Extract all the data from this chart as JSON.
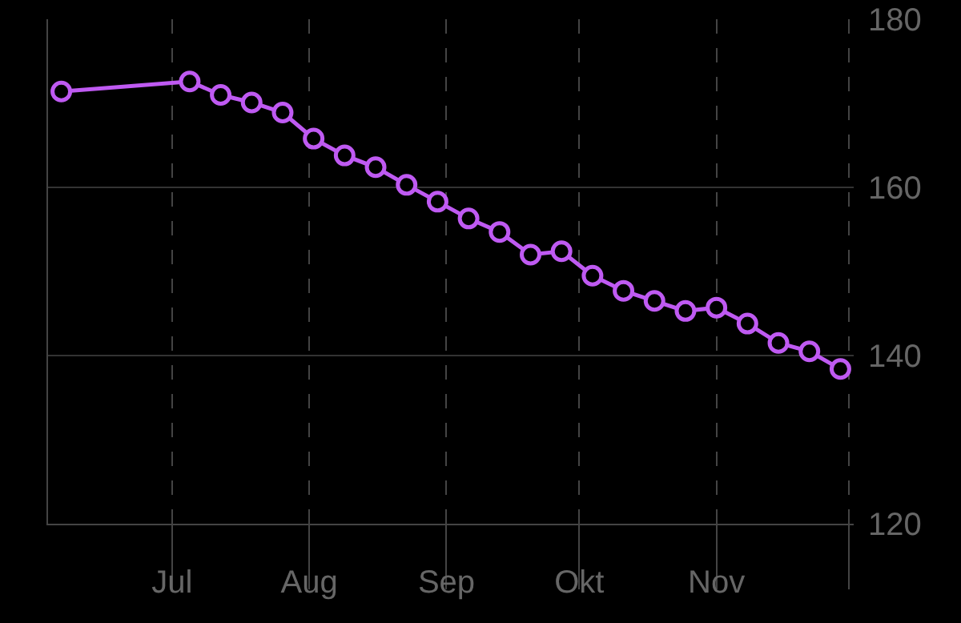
{
  "chart_data": {
    "type": "line",
    "x": [
      "--06-06",
      "--07-05",
      "--07-12",
      "--07-19",
      "--07-26",
      "--08-02",
      "--08-09",
      "--08-16",
      "--08-23",
      "--08-30",
      "--09-06",
      "--09-13",
      "--09-20",
      "--09-27",
      "--10-04",
      "--10-11",
      "--10-18",
      "--10-25",
      "--11-01",
      "--11-08",
      "--11-15",
      "--11-22",
      "--11-29"
    ],
    "series": [
      {
        "color": "#bf5af2",
        "values": [
          171.4,
          172.6,
          171.0,
          170.1,
          168.9,
          165.8,
          163.8,
          162.4,
          160.3,
          158.3,
          156.3,
          154.7,
          152.0,
          152.4,
          149.5,
          147.7,
          146.5,
          145.3,
          145.7,
          143.8,
          141.5,
          140.5,
          138.4
        ]
      }
    ],
    "xlim": [
      "--06-03",
      "--12-02"
    ],
    "xticks": [
      {
        "value": "--07-01",
        "label": "Jul"
      },
      {
        "value": "--08-01",
        "label": "Aug"
      },
      {
        "value": "--09-01",
        "label": "Sep"
      },
      {
        "value": "--10-01",
        "label": "Okt"
      },
      {
        "value": "--11-01",
        "label": "Nov"
      },
      {
        "value": "--12-01",
        "label": null
      }
    ],
    "ylim": [
      120,
      180
    ],
    "yticks": [
      120,
      140,
      160,
      180
    ],
    "grid": true,
    "marker": "circle",
    "line_style": "solid"
  }
}
